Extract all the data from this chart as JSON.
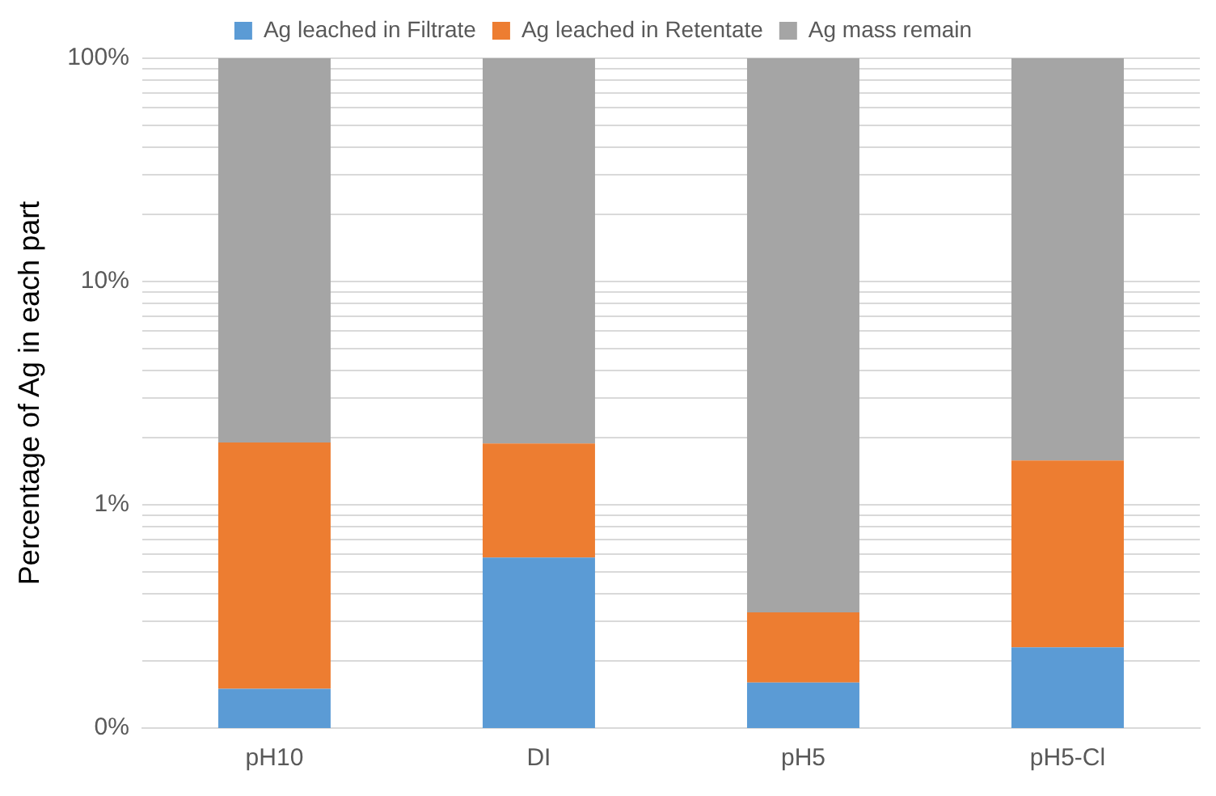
{
  "chart_data": {
    "type": "bar",
    "stacked": true,
    "log": "y",
    "ylabel": "Percentage of Ag in each part",
    "categories": [
      "pH10",
      "DI",
      "pH5",
      "pH5-Cl"
    ],
    "series": [
      {
        "name": "Ag leached in Filtrate",
        "color": "#5b9bd5",
        "values": [
          0.15,
          0.58,
          0.16,
          0.23
        ]
      },
      {
        "name": "Ag leached in Retentate",
        "color": "#ed7d31",
        "values": [
          1.75,
          1.3,
          0.17,
          1.35
        ]
      },
      {
        "name": "Ag mass remain",
        "color": "#a5a5a5",
        "values": [
          98.1,
          98.12,
          99.67,
          98.42
        ]
      }
    ],
    "ylim": [
      0.1,
      100
    ],
    "yticks": [
      {
        "value": 0.1,
        "label": "0%"
      },
      {
        "value": 0.2,
        "label": null
      },
      {
        "value": 0.3,
        "label": null
      },
      {
        "value": 0.4,
        "label": null
      },
      {
        "value": 0.5,
        "label": null
      },
      {
        "value": 0.6,
        "label": null
      },
      {
        "value": 0.7,
        "label": null
      },
      {
        "value": 0.8,
        "label": null
      },
      {
        "value": 0.9,
        "label": null
      },
      {
        "value": 1,
        "label": "1%"
      },
      {
        "value": 2,
        "label": null
      },
      {
        "value": 3,
        "label": null
      },
      {
        "value": 4,
        "label": null
      },
      {
        "value": 5,
        "label": null
      },
      {
        "value": 6,
        "label": null
      },
      {
        "value": 7,
        "label": null
      },
      {
        "value": 8,
        "label": null
      },
      {
        "value": 9,
        "label": null
      },
      {
        "value": 10,
        "label": "10%"
      },
      {
        "value": 20,
        "label": null
      },
      {
        "value": 30,
        "label": null
      },
      {
        "value": 40,
        "label": null
      },
      {
        "value": 50,
        "label": null
      },
      {
        "value": 60,
        "label": null
      },
      {
        "value": 70,
        "label": null
      },
      {
        "value": 80,
        "label": null
      },
      {
        "value": 90,
        "label": null
      },
      {
        "value": 100,
        "label": "100%"
      }
    ],
    "grid": "y",
    "legend": "top"
  }
}
